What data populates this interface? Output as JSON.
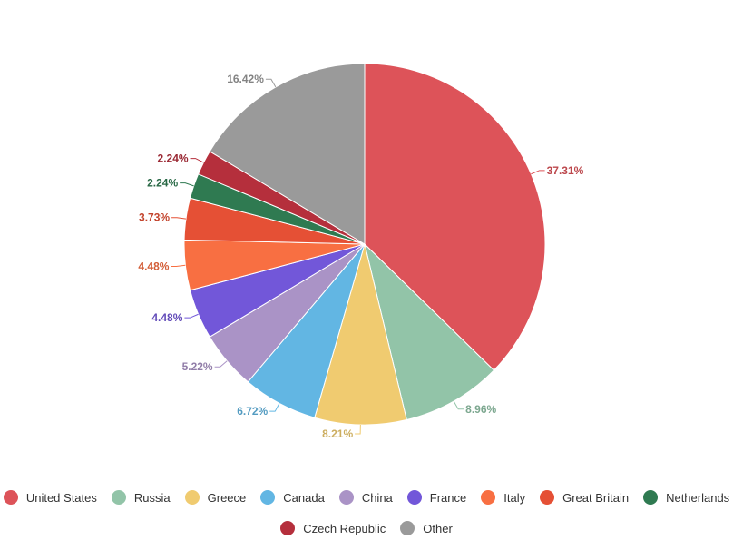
{
  "chart_data": {
    "type": "pie",
    "title": "",
    "value_suffix": "%",
    "slices": [
      {
        "name": "United States",
        "value": 37.31,
        "label": "37.31%",
        "color": "#dd5359"
      },
      {
        "name": "Russia",
        "value": 8.96,
        "label": "8.96%",
        "color": "#92c4a8"
      },
      {
        "name": "Greece",
        "value": 8.21,
        "label": "8.21%",
        "color": "#f0cb70"
      },
      {
        "name": "Canada",
        "value": 6.72,
        "label": "6.72%",
        "color": "#62b6e3"
      },
      {
        "name": "China",
        "value": 5.22,
        "label": "5.22%",
        "color": "#aa93c6"
      },
      {
        "name": "France",
        "value": 4.48,
        "label": "4.48%",
        "color": "#7257d9"
      },
      {
        "name": "Italy",
        "value": 4.48,
        "label": "4.48%",
        "color": "#f86f42"
      },
      {
        "name": "Great Britain",
        "value": 3.73,
        "label": "3.73%",
        "color": "#e55035"
      },
      {
        "name": "Netherlands",
        "value": 2.24,
        "label": "2.24%",
        "color": "#2f7a51"
      },
      {
        "name": "Czech Republic",
        "value": 2.24,
        "label": "2.24%",
        "color": "#b52f3c"
      },
      {
        "name": "Other",
        "value": 16.42,
        "label": "16.42%",
        "color": "#9a9a9a"
      }
    ],
    "legend_position": "bottom"
  }
}
